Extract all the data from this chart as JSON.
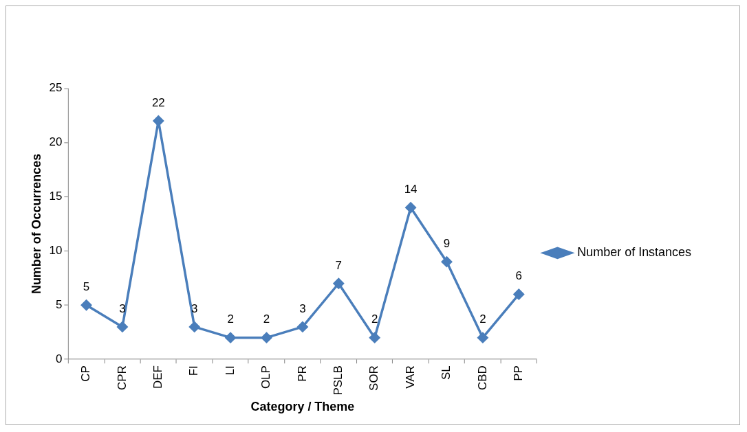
{
  "chart_data": {
    "type": "line",
    "xlabel": "Category / Theme",
    "ylabel": "Number of Occurrences",
    "categories": [
      "CP",
      "CPR",
      "DEF",
      "FI",
      "LI",
      "OLP",
      "PR",
      "PSLB",
      "SOR",
      "VAR",
      "SL",
      "CBD",
      "PP"
    ],
    "series": [
      {
        "name": "Number of Instances",
        "color": "#4a7ebb",
        "values": [
          5,
          3,
          22,
          3,
          2,
          2,
          3,
          7,
          2,
          14,
          9,
          2,
          6
        ]
      }
    ],
    "ylim": [
      0,
      25
    ],
    "yticks": [
      0,
      5,
      10,
      15,
      20,
      25
    ],
    "grid": false,
    "legend": "right",
    "marker": "diamond",
    "line_style": "solid",
    "data_labels": true
  }
}
